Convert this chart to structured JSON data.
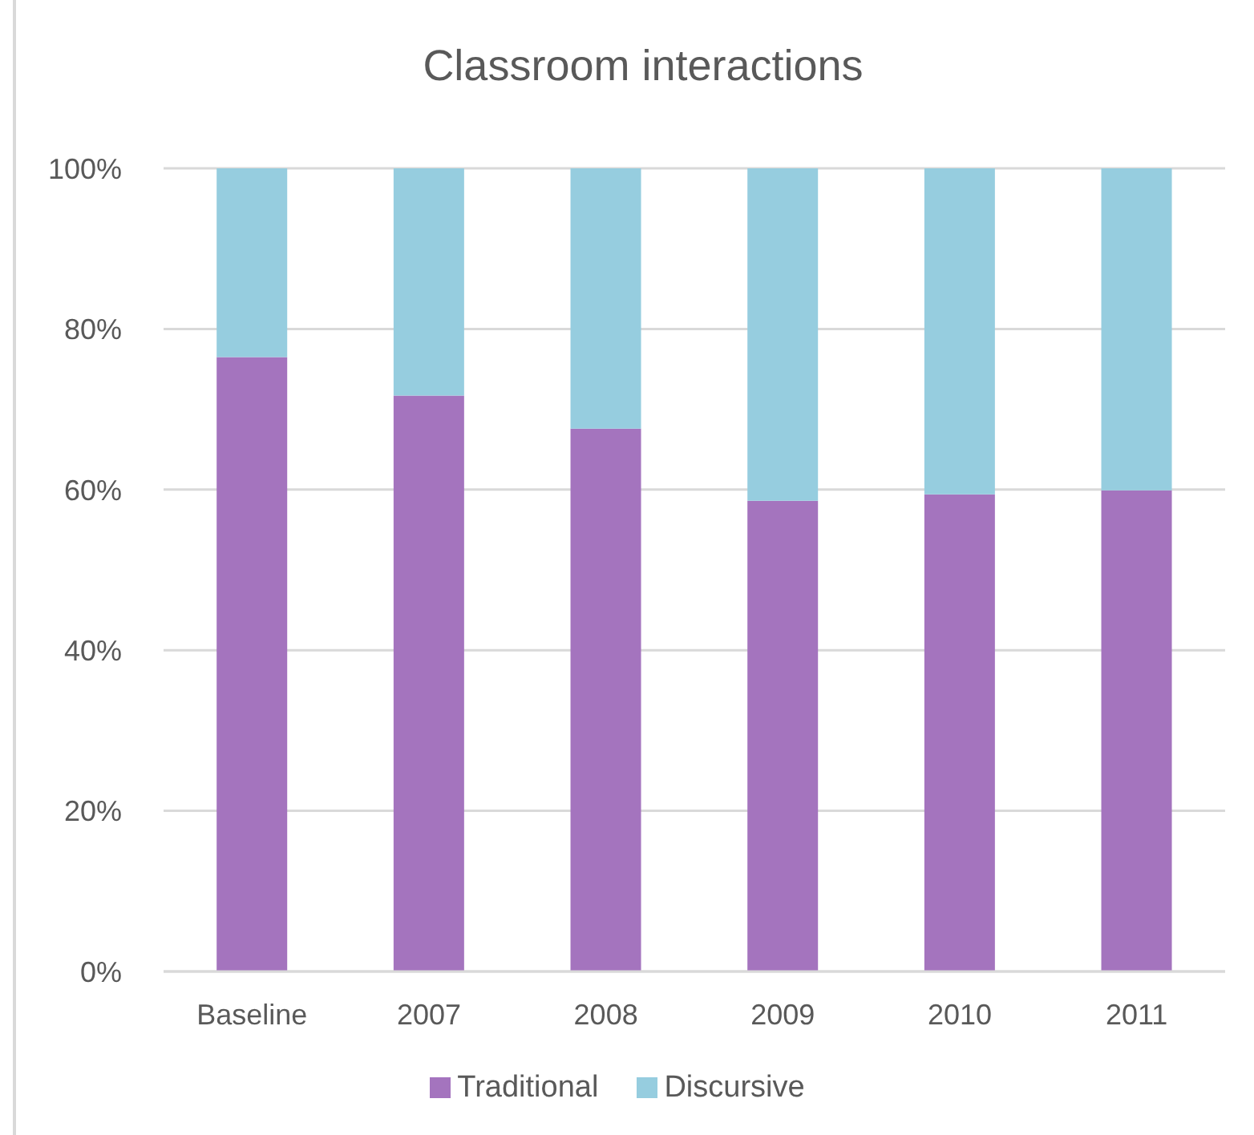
{
  "chart_data": {
    "type": "bar",
    "title": "Classroom interactions",
    "categories": [
      "Baseline",
      "2007",
      "2008",
      "2009",
      "2010",
      "2011"
    ],
    "series": [
      {
        "name": "Traditional",
        "color": "#a474be",
        "values": [
          76.5,
          71.7,
          67.6,
          58.6,
          59.4,
          59.9
        ]
      },
      {
        "name": "Discursive",
        "color": "#96cddf",
        "values": [
          23.5,
          28.3,
          32.4,
          41.4,
          40.6,
          40.1
        ]
      }
    ],
    "stacked": true,
    "ylim": [
      0,
      100
    ],
    "yticks": [
      {
        "value": 0,
        "label": "0%"
      },
      {
        "value": 20,
        "label": "20%"
      },
      {
        "value": 40,
        "label": "40%"
      },
      {
        "value": 60,
        "label": "60%"
      },
      {
        "value": 80,
        "label": "80%"
      },
      {
        "value": 100,
        "label": "100%"
      }
    ],
    "grid": "y",
    "legend": "bottom"
  }
}
